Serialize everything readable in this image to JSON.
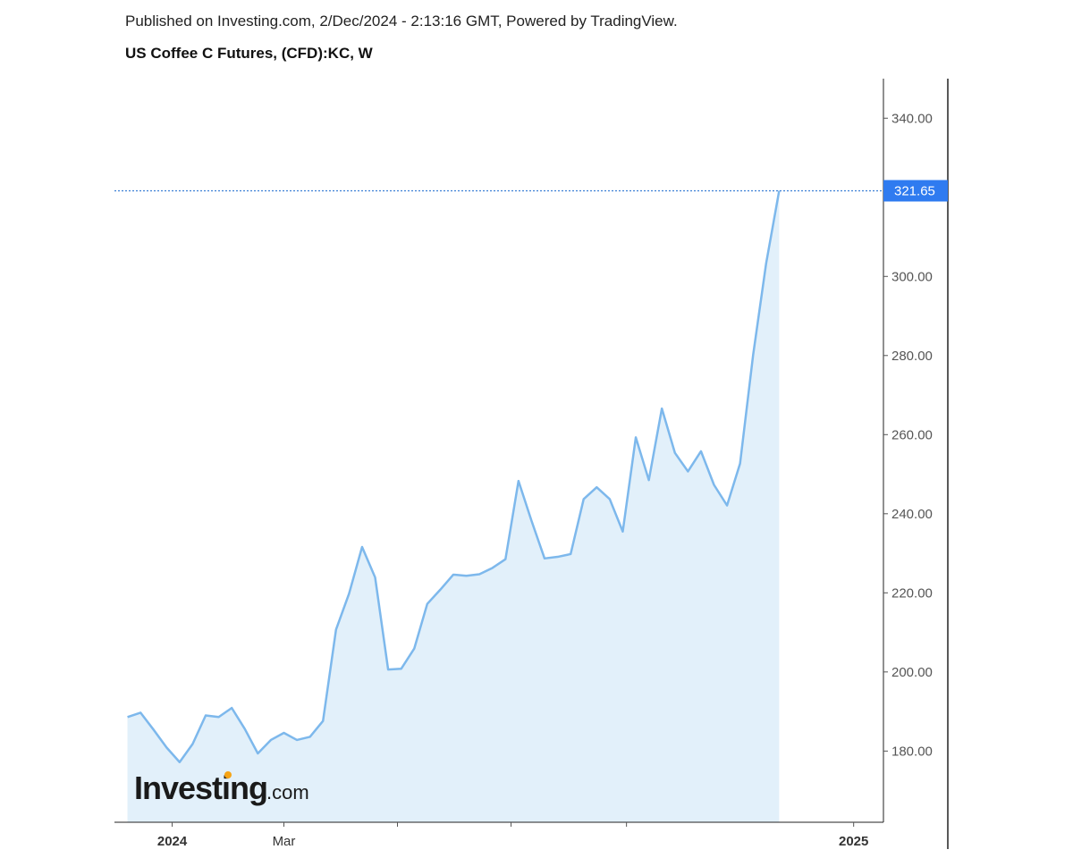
{
  "header": {
    "published": "Published on Investing.com, 2/Dec/2024 - 2:13:16 GMT, Powered by TradingView.",
    "title": "US Coffee C Futures, (CFD):KC, W"
  },
  "logo": {
    "brand": "Investing",
    "suffix": ".com",
    "accent_color": "#f6a416"
  },
  "colors": {
    "line": "#7db8ec",
    "area": "#e2f0fa",
    "last_price_bg": "#2f7bf0",
    "axis": "#222222",
    "reference_line": "#3a7fd5"
  },
  "chart_data": {
    "type": "area",
    "title": "US Coffee C Futures, (CFD):KC, W",
    "xlabel": "",
    "ylabel": "",
    "x_axis_labels": [
      "2024",
      "Mar",
      "",
      "",
      "",
      "2025"
    ],
    "y_ticks": [
      "180.00",
      "200.00",
      "220.00",
      "240.00",
      "260.00",
      "280.00",
      "300.00",
      "340.00"
    ],
    "ylim": [
      162,
      350
    ],
    "last_price": "321.65",
    "grid": false,
    "start_date": "2023-12-01",
    "end_date": "2025-01-17",
    "values": [
      188.6,
      189.7,
      185.4,
      180.9,
      177.2,
      181.8,
      189.0,
      188.6,
      190.9,
      185.6,
      179.4,
      182.8,
      184.6,
      182.8,
      183.6,
      187.6,
      210.7,
      219.8,
      231.6,
      223.9,
      200.6,
      200.8,
      205.9,
      217.2,
      220.8,
      224.6,
      224.3,
      224.7,
      226.3,
      228.5,
      248.3,
      238.2,
      228.7,
      229.1,
      229.8,
      243.7,
      246.7,
      243.7,
      235.5,
      259.3,
      248.5,
      266.6,
      255.4,
      250.7,
      255.8,
      247.3,
      242.1,
      252.7,
      280.1,
      303.3,
      321.65
    ]
  }
}
